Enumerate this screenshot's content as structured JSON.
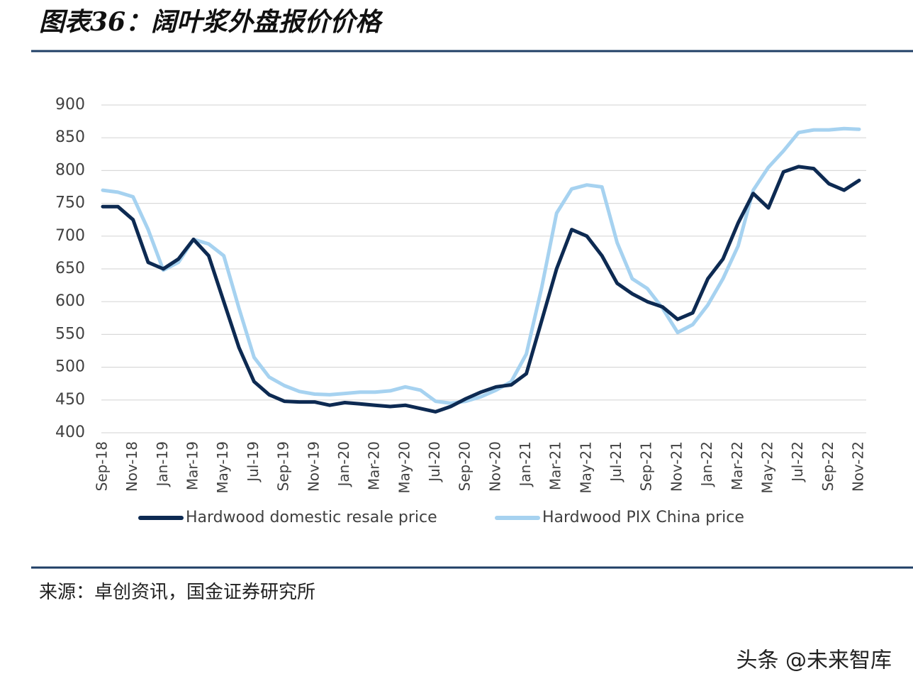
{
  "page_title": "图表36：阔叶浆外盘报价价格",
  "source": "来源：卓创资讯，国金证券研究所",
  "watermark": "头条 @未来智库",
  "chart_data": {
    "type": "line",
    "categories": [
      "Sep-18",
      null,
      "Nov-18",
      null,
      "Jan-19",
      null,
      "Mar-19",
      null,
      "May-19",
      null,
      "Jul-19",
      null,
      "Sep-19",
      null,
      "Nov-19",
      null,
      "Jan-20",
      null,
      "Mar-20",
      null,
      "May-20",
      null,
      "Jul-20",
      null,
      "Sep-20",
      null,
      "Nov-20",
      null,
      "Jan-21",
      null,
      "Mar-21",
      null,
      "May-21",
      null,
      "Jul-21",
      null,
      "Sep-21",
      null,
      "Nov-21",
      null,
      "Jan-22",
      null,
      "Mar-22",
      null,
      "May-22",
      null,
      "Jul-22",
      null,
      "Sep-22",
      null,
      "Nov-22"
    ],
    "series": [
      {
        "name": "Hardwood domestic resale price",
        "color": "#0d2a52",
        "values": [
          745,
          745,
          725,
          660,
          650,
          665,
          695,
          670,
          600,
          530,
          478,
          458,
          448,
          447,
          447,
          442,
          446,
          444,
          442,
          440,
          442,
          437,
          432,
          440,
          452,
          462,
          470,
          473,
          490,
          570,
          650,
          710,
          700,
          670,
          628,
          612,
          600,
          592,
          573,
          583,
          635,
          665,
          720,
          765,
          743,
          798,
          806,
          803,
          780,
          770,
          785
        ]
      },
      {
        "name": "Hardwood PIX China price",
        "color": "#a6d2f0",
        "values": [
          770,
          767,
          760,
          710,
          648,
          660,
          695,
          688,
          670,
          590,
          515,
          485,
          472,
          463,
          459,
          458,
          460,
          462,
          462,
          464,
          470,
          465,
          448,
          445,
          448,
          455,
          465,
          478,
          520,
          620,
          735,
          772,
          778,
          775,
          690,
          635,
          620,
          590,
          553,
          565,
          595,
          635,
          685,
          770,
          805,
          830,
          858,
          862,
          862,
          864,
          863
        ]
      }
    ],
    "ylim": [
      400,
      900
    ],
    "yticks": [
      400,
      450,
      500,
      550,
      600,
      650,
      700,
      750,
      800,
      850,
      900
    ],
    "grid": true
  }
}
